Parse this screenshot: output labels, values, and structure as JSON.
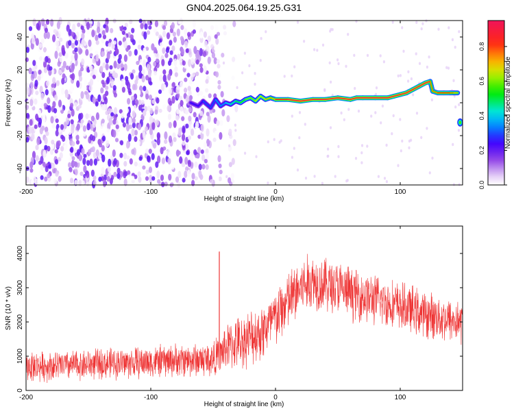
{
  "title": "GN04.2025.064.19.25.G31",
  "chart_data": [
    {
      "type": "heatmap",
      "xlabel": "Height of straight line (km)",
      "ylabel": "Frequency (Hz)",
      "xlim": [
        -200,
        150
      ],
      "ylim": [
        -50,
        50
      ],
      "xticks": [
        -200,
        -100,
        0,
        100
      ],
      "yticks": [
        -40,
        -20,
        0,
        20,
        40
      ],
      "colorbar": {
        "label": "Normalized spectral amplitude",
        "range": [
          0,
          0.95
        ],
        "ticks": [
          0.0,
          0.2,
          0.4,
          0.6,
          0.8
        ]
      },
      "noise_region": {
        "x_range": [
          -200,
          -45
        ],
        "y_range": [
          -50,
          50
        ]
      },
      "ridge": {
        "x": [
          -68,
          -62,
          -58,
          -52,
          -48,
          -44,
          -40,
          -36,
          -32,
          -28,
          -24,
          -20,
          -16,
          -12,
          -8,
          -4,
          0,
          10,
          20,
          30,
          40,
          50,
          60,
          65,
          70,
          80,
          90,
          95,
          100,
          105,
          110,
          115,
          120,
          124,
          126,
          130,
          135,
          140,
          143,
          146,
          148
        ],
        "y": [
          0,
          -2,
          1,
          -3,
          2,
          -2,
          0,
          -1,
          1,
          0,
          2,
          3,
          1,
          4,
          2,
          3,
          2,
          2,
          1,
          2,
          2,
          3,
          2,
          3,
          3,
          3,
          3,
          4,
          5,
          6,
          8,
          10,
          12,
          13,
          7,
          6,
          6,
          6,
          6,
          6,
          -12
        ],
        "amplitude": [
          0.3,
          0.25,
          0.3,
          0.3,
          0.35,
          0.35,
          0.4,
          0.45,
          0.5,
          0.55,
          0.6,
          0.6,
          0.65,
          0.65,
          0.7,
          0.7,
          0.85,
          0.9,
          0.9,
          0.9,
          0.9,
          0.9,
          0.9,
          0.9,
          0.9,
          0.9,
          0.9,
          0.9,
          0.9,
          0.9,
          0.9,
          0.9,
          0.9,
          0.9,
          0.75,
          0.8,
          0.8,
          0.8,
          0.75,
          0.7,
          0.5
        ]
      }
    },
    {
      "type": "line",
      "xlabel": "Height of straight line (km)",
      "ylabel": "SNR (10 * v/v)",
      "xlim": [
        -200,
        150
      ],
      "ylim": [
        0,
        4800
      ],
      "xticks": [
        -200,
        -100,
        0,
        100
      ],
      "yticks": [
        0,
        1000,
        2000,
        3000,
        4000
      ],
      "color": "#ee3333",
      "envelope": {
        "x": [
          -200,
          -180,
          -160,
          -140,
          -120,
          -100,
          -80,
          -60,
          -50,
          -45,
          -40,
          -30,
          -20,
          -10,
          0,
          10,
          20,
          30,
          40,
          50,
          60,
          70,
          80,
          90,
          100,
          110,
          120,
          130,
          140,
          150
        ],
        "mean": [
          700,
          710,
          740,
          780,
          800,
          830,
          880,
          900,
          920,
          1000,
          1250,
          1400,
          1550,
          1750,
          2100,
          2600,
          3000,
          3200,
          3100,
          3000,
          2850,
          2750,
          2650,
          2550,
          2450,
          2350,
          2200,
          2150,
          2050,
          2000
        ],
        "spread": [
          420,
          420,
          420,
          430,
          440,
          450,
          460,
          480,
          520,
          560,
          650,
          720,
          780,
          820,
          850,
          850,
          830,
          800,
          780,
          760,
          740,
          720,
          700,
          680,
          680,
          670,
          650,
          640,
          620,
          620
        ]
      },
      "spike": {
        "x": -45,
        "y": 4050
      }
    }
  ]
}
